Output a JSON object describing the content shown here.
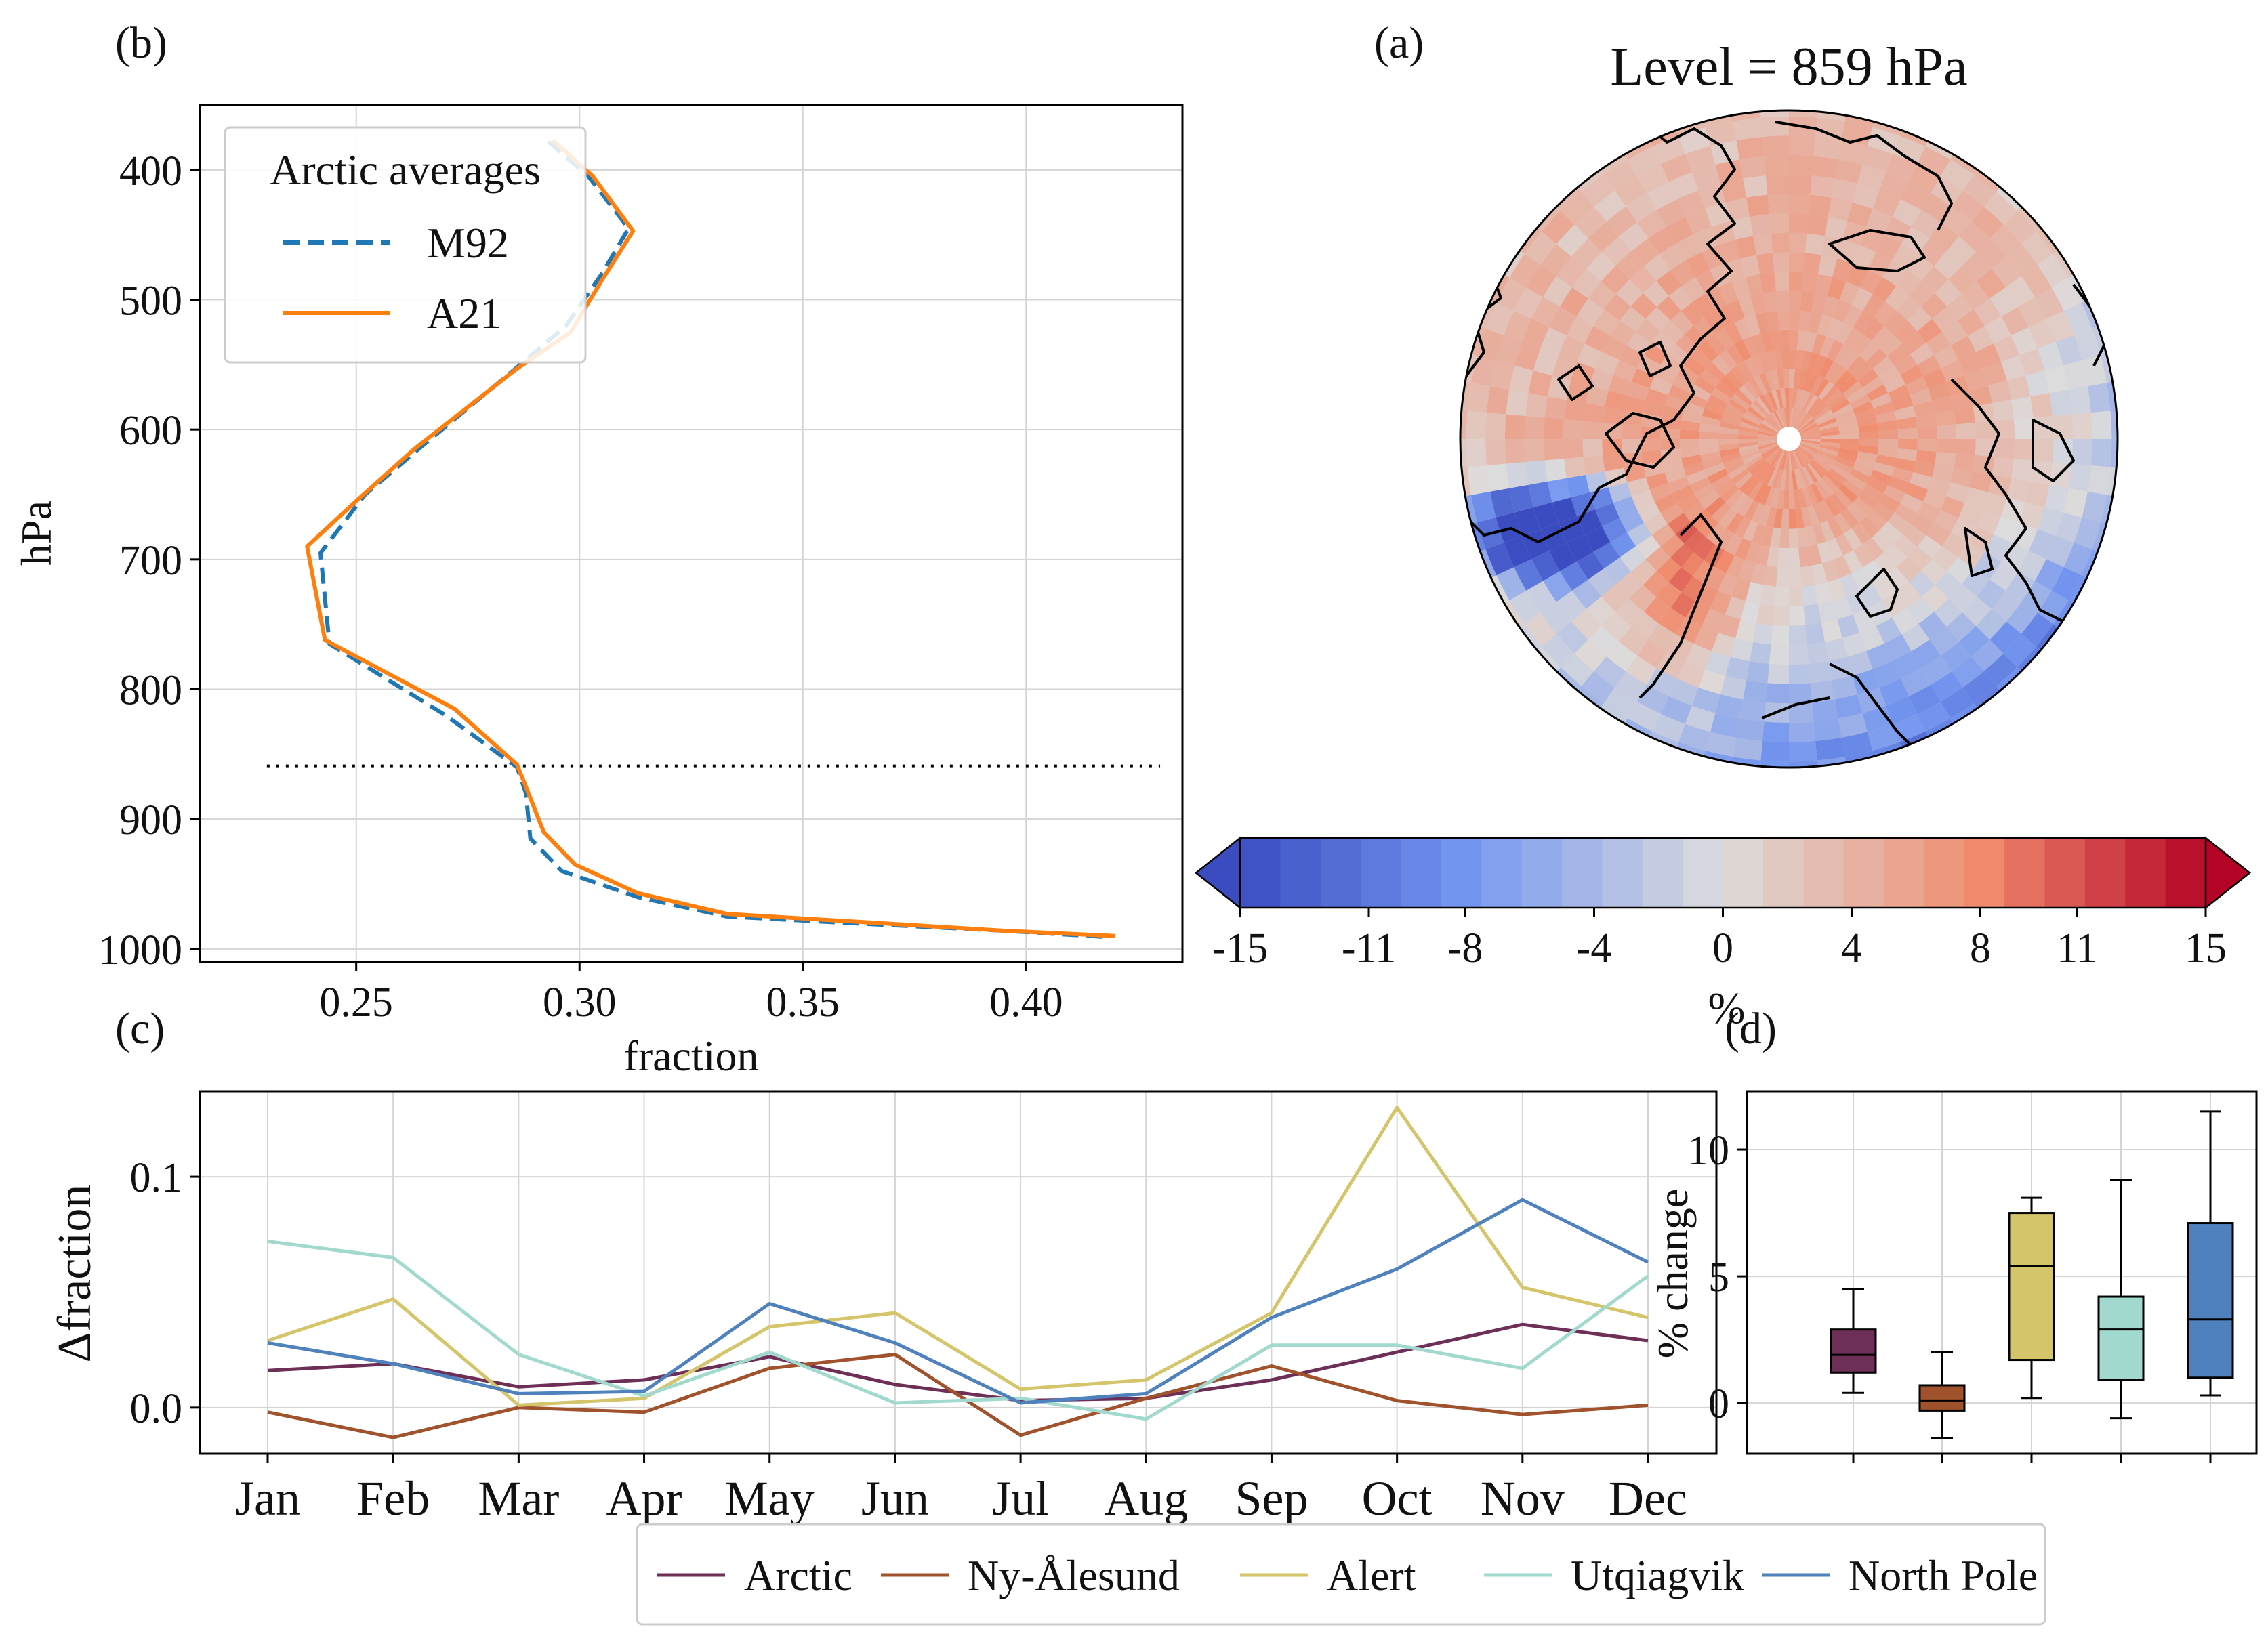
{
  "panel_labels": {
    "a": "(a)",
    "b": "(b)",
    "c": "(c)",
    "d": "(d)"
  },
  "chart_data": [
    {
      "id": "b",
      "type": "line",
      "xlabel": "fraction",
      "ylabel": "hPa",
      "xlim": [
        0.215,
        0.435
      ],
      "ylim": [
        1010,
        350
      ],
      "y_inverted": true,
      "xticks": [
        0.25,
        0.3,
        0.35,
        0.4
      ],
      "xtick_labels": [
        "0.25",
        "0.30",
        "0.35",
        "0.40"
      ],
      "yticks": [
        400,
        500,
        600,
        700,
        800,
        900,
        1000
      ],
      "ytick_labels": [
        "400",
        "500",
        "600",
        "700",
        "800",
        "900",
        "1000"
      ],
      "grid": true,
      "legend": {
        "title": "Arctic averages",
        "placement": "top-left"
      },
      "reference_line": {
        "y": 859,
        "x_range": [
          0.23,
          0.43
        ],
        "style": "dotted"
      },
      "series": [
        {
          "name": "M92",
          "color": "#1f77b4",
          "dash": "dashed",
          "points": [
            [
              0.293,
              378
            ],
            [
              0.302,
              405
            ],
            [
              0.311,
              445
            ],
            [
              0.305,
              480
            ],
            [
              0.297,
              520
            ],
            [
              0.285,
              555
            ],
            [
              0.265,
              612
            ],
            [
              0.252,
              650
            ],
            [
              0.242,
              695
            ],
            [
              0.244,
              765
            ],
            [
              0.27,
              820
            ],
            [
              0.286,
              860
            ],
            [
              0.288,
              880
            ],
            [
              0.289,
              915
            ],
            [
              0.296,
              940
            ],
            [
              0.313,
              960
            ],
            [
              0.333,
              975
            ],
            [
              0.36,
              980
            ],
            [
              0.395,
              986
            ],
            [
              0.419,
              991
            ]
          ]
        },
        {
          "name": "A21",
          "color": "#ff7f0e",
          "dash": "solid",
          "points": [
            [
              0.294,
              377
            ],
            [
              0.303,
              405
            ],
            [
              0.312,
              447
            ],
            [
              0.305,
              485
            ],
            [
              0.298,
              525
            ],
            [
              0.286,
              553
            ],
            [
              0.263,
              615
            ],
            [
              0.25,
              655
            ],
            [
              0.239,
              690
            ],
            [
              0.243,
              762
            ],
            [
              0.272,
              815
            ],
            [
              0.286,
              858
            ],
            [
              0.288,
              875
            ],
            [
              0.292,
              910
            ],
            [
              0.299,
              935
            ],
            [
              0.313,
              957
            ],
            [
              0.333,
              973
            ],
            [
              0.362,
              979
            ],
            [
              0.395,
              986
            ],
            [
              0.42,
              990
            ]
          ]
        }
      ]
    },
    {
      "id": "a",
      "type": "heatmap",
      "title": "Level = 859 hPa",
      "projection": "north polar stereographic",
      "colorbar": {
        "label": "%",
        "min": -15,
        "max": 15,
        "extend": "both",
        "ticks": [
          -15,
          -11,
          -8,
          -4,
          0,
          4,
          8,
          11,
          15
        ],
        "tick_labels": [
          "-15",
          "-11",
          "-8",
          "-4",
          "0",
          "4",
          "8",
          "11",
          "15"
        ],
        "colors": [
          "#3b4cc0",
          "#dddcdc",
          "#b40426"
        ]
      }
    },
    {
      "id": "c",
      "type": "line",
      "ylabel": "Δfraction",
      "categories": [
        "Jan",
        "Feb",
        "Mar",
        "Apr",
        "May",
        "Jun",
        "Jul",
        "Aug",
        "Sep",
        "Oct",
        "Nov",
        "Dec"
      ],
      "ylim": [
        -0.02,
        0.137
      ],
      "yticks": [
        0.0,
        0.1
      ],
      "ytick_labels": [
        "0.0",
        "0.1"
      ],
      "grid": true,
      "legend": {
        "placement": "bottom-center"
      },
      "series": [
        {
          "name": "Arctic",
          "color": "#6e2f57",
          "values": [
            0.016,
            0.019,
            0.009,
            0.012,
            0.022,
            0.01,
            0.003,
            0.004,
            0.012,
            0.024,
            0.036,
            0.029
          ]
        },
        {
          "name": "Ny-Ålesund",
          "color": "#a0522d",
          "values": [
            -0.002,
            -0.013,
            0.0,
            -0.002,
            0.017,
            0.023,
            -0.012,
            0.004,
            0.018,
            0.003,
            -0.003,
            0.001
          ]
        },
        {
          "name": "Alert",
          "color": "#d4c46a",
          "values": [
            0.029,
            0.047,
            0.001,
            0.004,
            0.035,
            0.041,
            0.008,
            0.012,
            0.041,
            0.13,
            0.052,
            0.039
          ]
        },
        {
          "name": "Utqiagvik",
          "color": "#a2d9ce",
          "values": [
            0.072,
            0.065,
            0.023,
            0.005,
            0.024,
            0.002,
            0.004,
            -0.005,
            0.027,
            0.027,
            0.017,
            0.057
          ]
        },
        {
          "name": "North Pole",
          "color": "#4f81bd",
          "values": [
            0.028,
            0.019,
            0.006,
            0.007,
            0.045,
            0.028,
            0.002,
            0.006,
            0.039,
            0.06,
            0.09,
            0.063
          ]
        }
      ]
    },
    {
      "id": "d",
      "type": "box",
      "ylabel": "% change",
      "ylim": [
        -2,
        12.3
      ],
      "yticks": [
        0,
        5,
        10
      ],
      "ytick_labels": [
        "0",
        "5",
        "10"
      ],
      "grid": true,
      "boxes": [
        {
          "color": "#6e2f57",
          "min": 0.4,
          "q1": 1.2,
          "median": 1.9,
          "q3": 2.9,
          "max": 4.5
        },
        {
          "color": "#a0522d",
          "min": -1.4,
          "q1": -0.3,
          "median": 0.1,
          "q3": 0.7,
          "max": 2.0
        },
        {
          "color": "#d4c46a",
          "min": 0.2,
          "q1": 1.7,
          "median": 5.4,
          "q3": 7.5,
          "max": 8.1
        },
        {
          "color": "#a2d9ce",
          "min": -0.6,
          "q1": 0.9,
          "median": 2.9,
          "q3": 4.2,
          "max": 8.8
        },
        {
          "color": "#4f81bd",
          "min": 0.3,
          "q1": 1.0,
          "median": 3.3,
          "q3": 7.1,
          "max": 11.5
        }
      ]
    }
  ]
}
